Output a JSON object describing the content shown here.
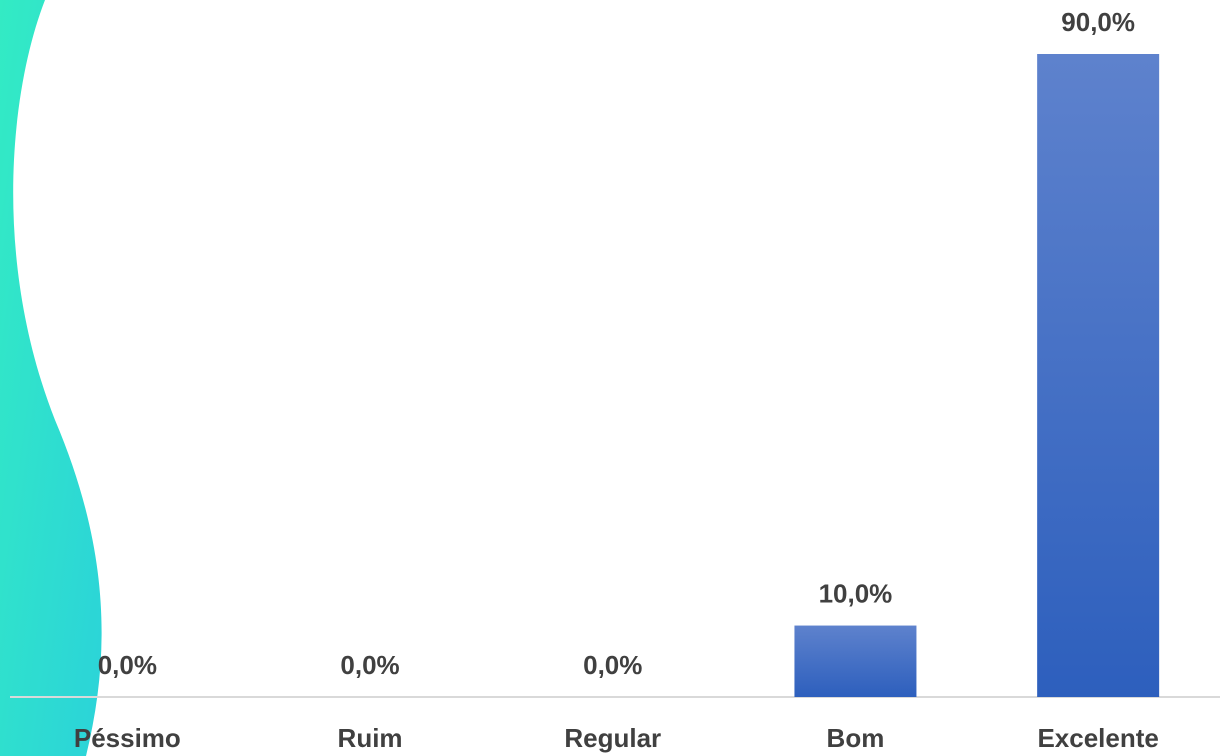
{
  "chart_data": {
    "type": "bar",
    "categories": [
      "Péssimo",
      "Ruim",
      "Regular",
      "Bom",
      "Excelente"
    ],
    "values": [
      0,
      0,
      0,
      10,
      90
    ],
    "value_labels": [
      "0,0%",
      "0,0%",
      "0,0%",
      "10,0%",
      "90,0%"
    ],
    "color": "#4472c4"
  }
}
